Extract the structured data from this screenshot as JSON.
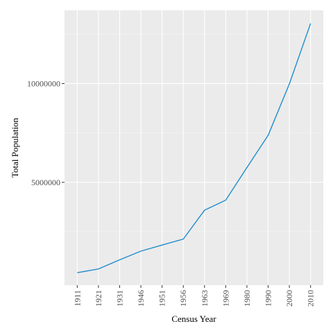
{
  "chart_data": {
    "type": "line",
    "title": "",
    "xlabel": "Census Year",
    "ylabel": "Total Population",
    "categories": [
      "1911",
      "1921",
      "1931",
      "1946",
      "1951",
      "1956",
      "1963",
      "1969",
      "1980",
      "1990",
      "2000",
      "2010"
    ],
    "series": [
      {
        "values": [
          430000,
          620000,
          1080000,
          1520000,
          1830000,
          2130000,
          3590000,
          4100000,
          5750000,
          7380000,
          9980000,
          13040000
        ]
      }
    ],
    "y_ticks": [
      {
        "value": 5000000,
        "label": "5000000"
      },
      {
        "value": 10000000,
        "label": "10000000"
      }
    ],
    "ylim": [
      -200000,
      13700000
    ],
    "grid": true,
    "legend": "none",
    "colors": {
      "panel_background": "#ebebeb",
      "grid_major": "#ffffff",
      "grid_minor": "#f5f5f5",
      "line": "#1f8ccc",
      "tick_mark": "#333333"
    }
  }
}
